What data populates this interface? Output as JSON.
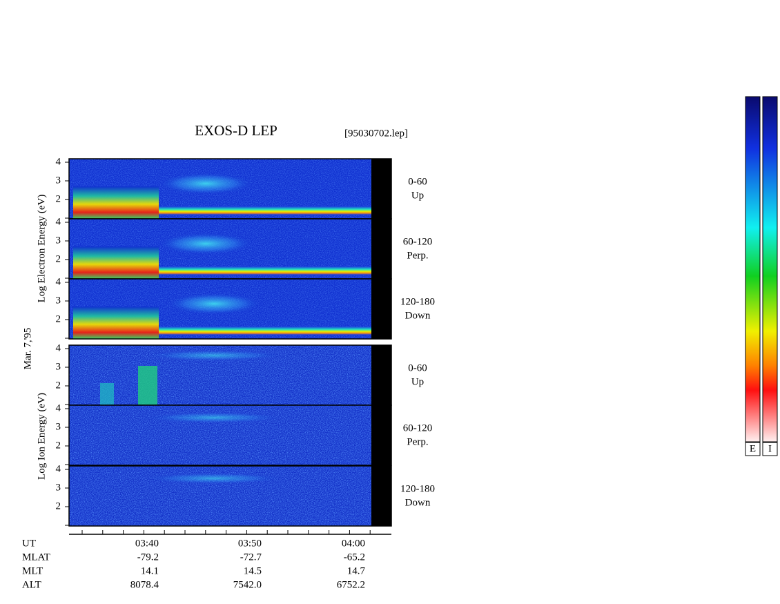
{
  "title": "EXOS-D LEP",
  "file": "[95030702.lep]",
  "date": "Mar. 7,'95",
  "electron_axis_label": "Log Electron Energy (eV)",
  "ion_axis_label": "Log Ion Energy (eV)",
  "energy_ticks": [
    "4",
    "3",
    "2"
  ],
  "panels": [
    {
      "angle": "0-60",
      "direction": "Up"
    },
    {
      "angle": "60-120",
      "direction": "Perp."
    },
    {
      "angle": "120-180",
      "direction": "Down"
    },
    {
      "angle": "0-60",
      "direction": "Up"
    },
    {
      "angle": "60-120",
      "direction": "Perp."
    },
    {
      "angle": "120-180",
      "direction": "Down"
    }
  ],
  "orbit_labels": [
    "UT",
    "MLAT",
    "MLT",
    "ALT"
  ],
  "orbit_columns": [
    [
      "03:40",
      "-79.2",
      "14.1",
      "8078.4"
    ],
    [
      "03:50",
      "-72.7",
      "14.5",
      "7542.0"
    ],
    [
      "04:00",
      "-65.2",
      "14.7",
      "6752.2"
    ]
  ],
  "colorbar_labels": [
    "E",
    "I"
  ]
}
